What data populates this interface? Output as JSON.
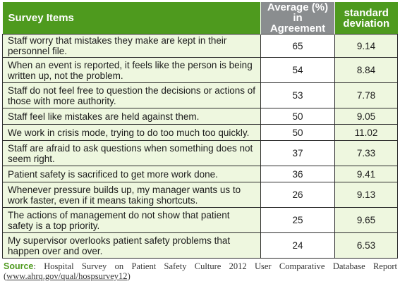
{
  "table": {
    "headers": {
      "items": "Survey Items",
      "avg_line1": "Average (%)",
      "avg_line2": "in Agreement",
      "sd_line1": "standard",
      "sd_line2": "deviation"
    },
    "rows": [
      {
        "item": "Staff worry that mistakes they make are kept in their personnel file.",
        "avg": "65",
        "sd": "9.14"
      },
      {
        "item": "When an event is reported, it feels like the person is being written up, not the problem.",
        "avg": "54",
        "sd": "8.84"
      },
      {
        "item": "Staff do not feel free to question the decisions or actions of those with more authority.",
        "avg": "53",
        "sd": "7.78"
      },
      {
        "item": "Staff feel like mistakes are held against them.",
        "avg": "50",
        "sd": "9.05"
      },
      {
        "item": "We work in crisis mode, trying to do too much too quickly.",
        "avg": "50",
        "sd": "11.02"
      },
      {
        "item": "Staff are afraid to ask questions when something does not seem right.",
        "avg": "37",
        "sd": "7.33"
      },
      {
        "item": "Patient safety is sacrificed to get more work done.",
        "avg": "36",
        "sd": "9.41"
      },
      {
        "item": "Whenever pressure builds up, my manager wants us to work faster, even if it means taking shortcuts.",
        "avg": "26",
        "sd": "9.13"
      },
      {
        "item": "The actions of management do not show that patient safety is a top priority.",
        "avg": "25",
        "sd": "9.65"
      },
      {
        "item": "My supervisor overlooks patient safety problems that happen over and over.",
        "avg": "24",
        "sd": "6.53"
      }
    ]
  },
  "source": {
    "label": "Source",
    "text": "Hospital Survey on Patient Safety Culture 2012 User Comparative Database Report",
    "url_text": "www.ahrq.gov/qual/hospsurvey12"
  },
  "colors": {
    "header_green": "#4e9a1e",
    "header_gray": "#8a8d8f",
    "row_tint": "#eef7df",
    "border": "#2b2b2b"
  }
}
